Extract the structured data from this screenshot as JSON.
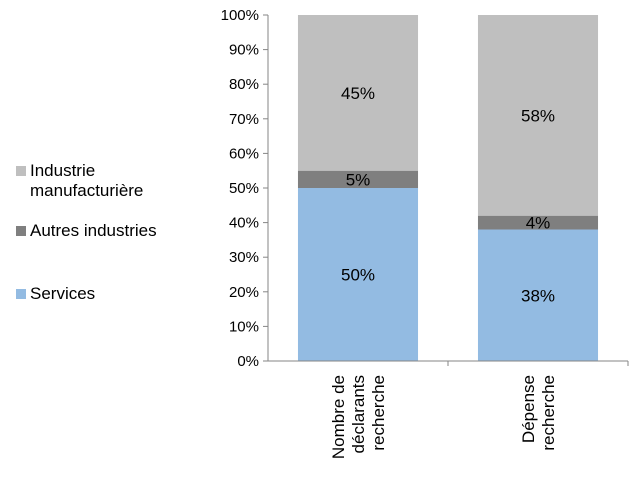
{
  "chart_data": {
    "type": "bar",
    "stacked": true,
    "categories": [
      [
        "Nombre de",
        "déclarants",
        "recherche"
      ],
      [
        "Dépense",
        "recherche"
      ]
    ],
    "series": [
      {
        "name": "Services",
        "values": [
          50,
          38
        ],
        "labels": [
          "50%",
          "38%"
        ],
        "color": "#93bbe2"
      },
      {
        "name": "Autres industries",
        "values": [
          5,
          4
        ],
        "labels": [
          "5%",
          "4%"
        ],
        "color": "#7f7f7f"
      },
      {
        "name": "Industrie\nmanufacturière",
        "values": [
          45,
          58
        ],
        "labels": [
          "45%",
          "58%"
        ],
        "color": "#bfbfbf"
      }
    ],
    "ylim": [
      0,
      100
    ],
    "yticks": [
      "0%",
      "10%",
      "20%",
      "30%",
      "40%",
      "50%",
      "60%",
      "70%",
      "80%",
      "90%",
      "100%"
    ],
    "grid": false,
    "legend_position": "left"
  }
}
